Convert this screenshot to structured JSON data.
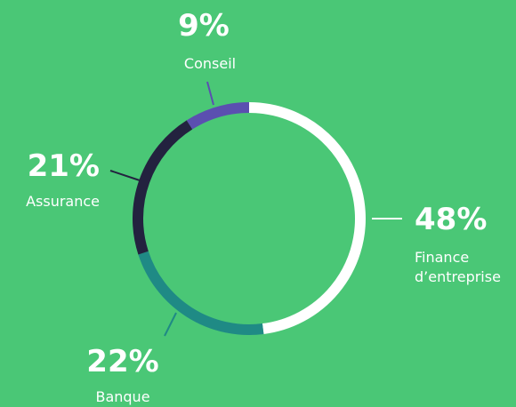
{
  "chart_data": {
    "type": "pie",
    "donut": true,
    "categories": [
      "Finance d’entreprise",
      "Banque",
      "Assurance",
      "Conseil"
    ],
    "values": [
      48,
      22,
      21,
      9
    ],
    "value_labels": [
      "48%",
      "22%",
      "21%",
      "9%"
    ],
    "colors": [
      "#ffffff",
      "#1f8a85",
      "#23223f",
      "#5b4fb0"
    ]
  }
}
